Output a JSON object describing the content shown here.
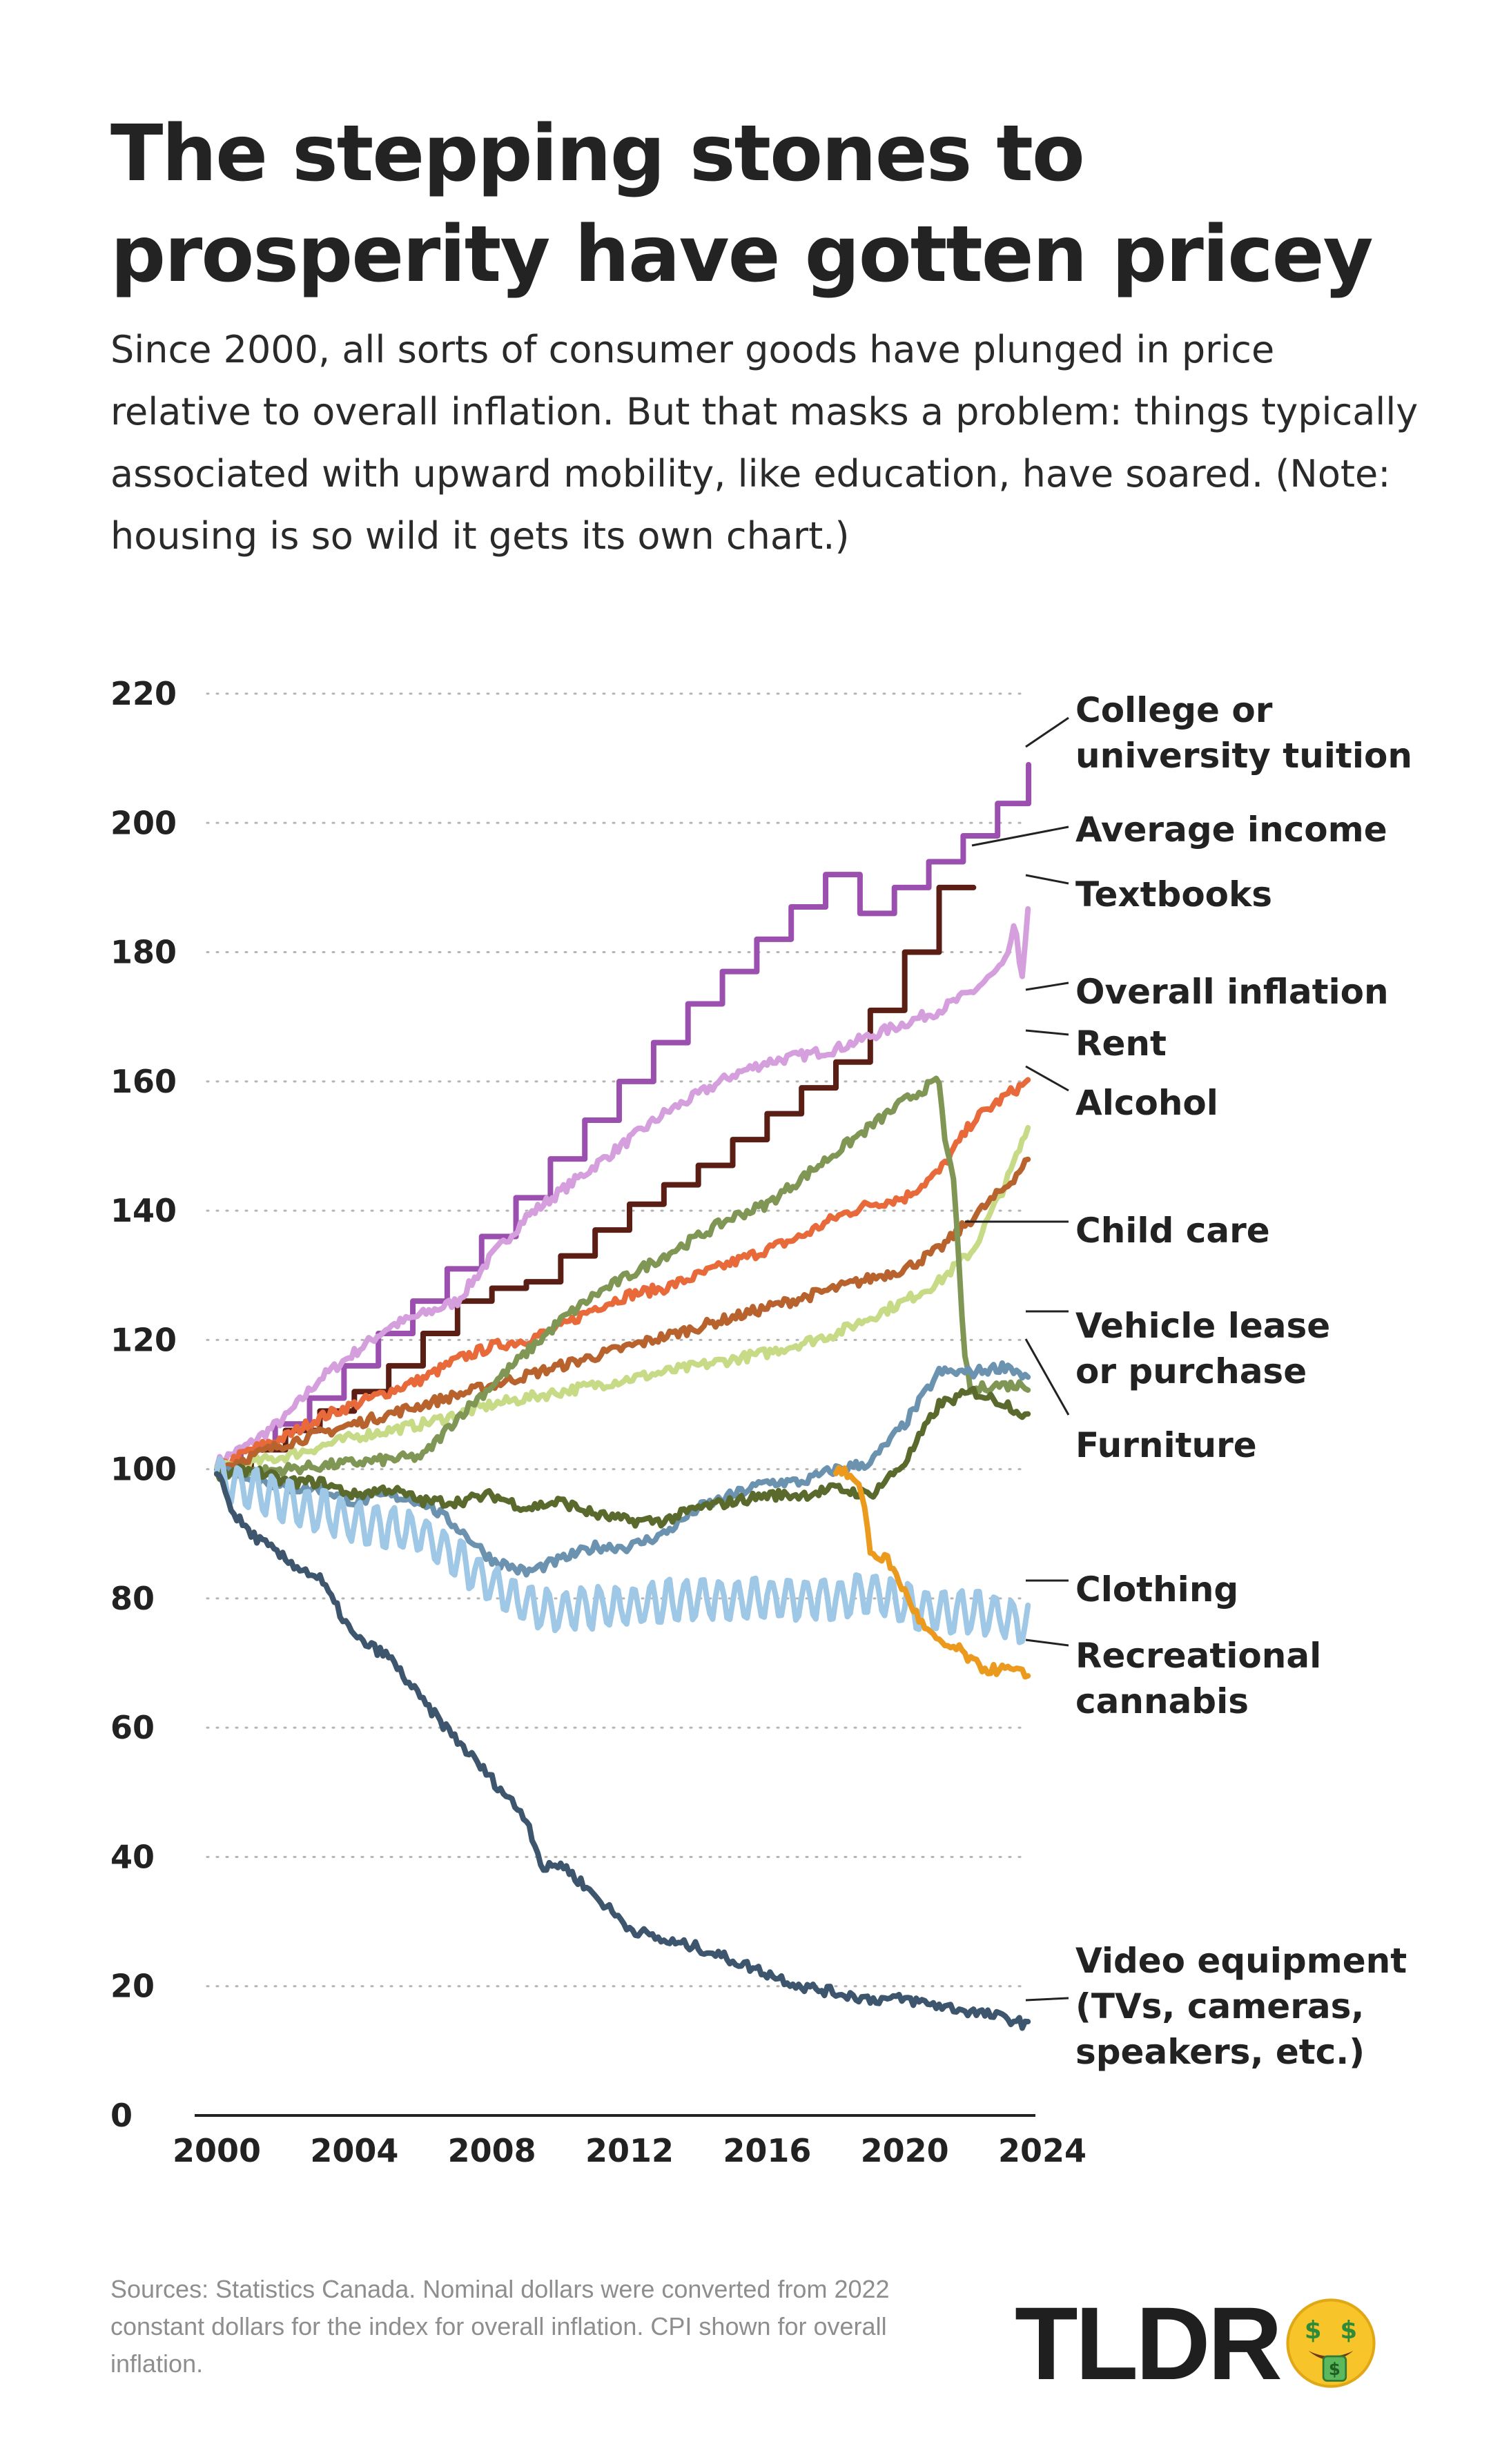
{
  "title": "The stepping stones to prosperity have gotten pricey",
  "subtitle": "Since 2000, all sorts of consumer goods have plunged in price relative to overall inflation. But that masks a problem: things typically associated with upward mobility, like education, have soared. (Note: housing is so wild it gets its own chart.)",
  "sources": "Sources: Statistics Canada. Nominal dollars were converted from 2022 constant dollars for the index for overall inflation. CPI shown for overall inflation.",
  "logo": {
    "text": "TLDR",
    "icon": "money-mouth-face-icon"
  },
  "chart_data": {
    "type": "line",
    "title": "",
    "xlabel": "",
    "ylabel": "",
    "xlim": [
      2000,
      2024
    ],
    "ylim": [
      0,
      220
    ],
    "x_ticks": [
      "2000",
      "2004",
      "2008",
      "2012",
      "2016",
      "2020",
      "2024"
    ],
    "y_ticks": [
      "0",
      "20",
      "40",
      "60",
      "80",
      "100",
      "120",
      "140",
      "160",
      "180",
      "200",
      "220"
    ],
    "grid": "horizontal dotted",
    "legend": "direct labels at right",
    "series": [
      {
        "name": "College or university tuition",
        "color": "#9b4fae",
        "style": "step",
        "points": [
          [
            2000,
            100
          ],
          [
            2000.7,
            103
          ],
          [
            2001.7,
            107
          ],
          [
            2002.7,
            111
          ],
          [
            2003.7,
            116
          ],
          [
            2004.7,
            121
          ],
          [
            2005.7,
            126
          ],
          [
            2006.7,
            131
          ],
          [
            2007.7,
            136
          ],
          [
            2008.7,
            142
          ],
          [
            2009.7,
            148
          ],
          [
            2010.7,
            154
          ],
          [
            2011.7,
            160
          ],
          [
            2012.7,
            166
          ],
          [
            2013.7,
            172
          ],
          [
            2014.7,
            177
          ],
          [
            2015.7,
            182
          ],
          [
            2016.7,
            187
          ],
          [
            2017.7,
            192
          ],
          [
            2018.7,
            186
          ],
          [
            2019.7,
            190
          ],
          [
            2020.7,
            194
          ],
          [
            2021.7,
            198
          ],
          [
            2022.7,
            203
          ],
          [
            2023.6,
            209
          ]
        ]
      },
      {
        "name": "Average income",
        "color": "#5a1e14",
        "style": "step",
        "points": [
          [
            2000,
            100
          ],
          [
            2001,
            103
          ],
          [
            2002,
            106
          ],
          [
            2003,
            109
          ],
          [
            2004,
            112
          ],
          [
            2005,
            116
          ],
          [
            2006,
            121
          ],
          [
            2007,
            126
          ],
          [
            2008,
            128
          ],
          [
            2009,
            129
          ],
          [
            2010,
            133
          ],
          [
            2011,
            137
          ],
          [
            2012,
            141
          ],
          [
            2013,
            144
          ],
          [
            2014,
            147
          ],
          [
            2015,
            151
          ],
          [
            2016,
            155
          ],
          [
            2017,
            159
          ],
          [
            2018,
            163
          ],
          [
            2019,
            171
          ],
          [
            2020,
            180
          ],
          [
            2021,
            190
          ],
          [
            2022,
            190
          ]
        ]
      },
      {
        "name": "Textbooks",
        "color": "#d59fdd",
        "points": [
          [
            2000,
            101
          ],
          [
            2001,
            104
          ],
          [
            2002,
            108
          ],
          [
            2003,
            114
          ],
          [
            2004,
            118
          ],
          [
            2005,
            122
          ],
          [
            2006,
            124
          ],
          [
            2007,
            126
          ],
          [
            2008,
            133
          ],
          [
            2009,
            139
          ],
          [
            2010,
            143
          ],
          [
            2011,
            147
          ],
          [
            2012,
            151
          ],
          [
            2013,
            155
          ],
          [
            2014,
            158
          ],
          [
            2015,
            161
          ],
          [
            2016,
            163
          ],
          [
            2017,
            164
          ],
          [
            2018,
            165
          ],
          [
            2019,
            167
          ],
          [
            2020,
            169
          ],
          [
            2021,
            171
          ],
          [
            2022,
            174
          ],
          [
            2022.9,
            178
          ],
          [
            2023.2,
            184
          ],
          [
            2023.4,
            176
          ],
          [
            2023.6,
            187
          ]
        ]
      },
      {
        "name": "Overall inflation",
        "color": "#e8693a",
        "points": [
          [
            2000,
            100
          ],
          [
            2001,
            103
          ],
          [
            2002,
            105
          ],
          [
            2003,
            108
          ],
          [
            2004,
            110
          ],
          [
            2005,
            112
          ],
          [
            2006,
            114
          ],
          [
            2007,
            117
          ],
          [
            2008,
            119
          ],
          [
            2009,
            120
          ],
          [
            2010,
            122
          ],
          [
            2011,
            125
          ],
          [
            2012,
            127
          ],
          [
            2013,
            128
          ],
          [
            2014,
            130
          ],
          [
            2015,
            132
          ],
          [
            2016,
            134
          ],
          [
            2017,
            136
          ],
          [
            2018,
            139
          ],
          [
            2019,
            141
          ],
          [
            2020,
            142
          ],
          [
            2021,
            146
          ],
          [
            2022,
            154
          ],
          [
            2023,
            158
          ],
          [
            2023.6,
            160
          ]
        ]
      },
      {
        "name": "Rent",
        "color": "#c7db86",
        "points": [
          [
            2000,
            100
          ],
          [
            2002,
            102
          ],
          [
            2004,
            105
          ],
          [
            2006,
            107
          ],
          [
            2008,
            110
          ],
          [
            2010,
            112
          ],
          [
            2012,
            114
          ],
          [
            2014,
            116
          ],
          [
            2016,
            118
          ],
          [
            2018,
            121
          ],
          [
            2020,
            126
          ],
          [
            2021,
            129
          ],
          [
            2022,
            134
          ],
          [
            2023,
            145
          ],
          [
            2023.6,
            153
          ]
        ]
      },
      {
        "name": "Alcohol",
        "color": "#b8622e",
        "points": [
          [
            2000,
            100
          ],
          [
            2002,
            104
          ],
          [
            2004,
            107
          ],
          [
            2006,
            110
          ],
          [
            2008,
            113
          ],
          [
            2010,
            116
          ],
          [
            2012,
            119
          ],
          [
            2014,
            122
          ],
          [
            2016,
            125
          ],
          [
            2018,
            128
          ],
          [
            2020,
            131
          ],
          [
            2021,
            134
          ],
          [
            2022,
            139
          ],
          [
            2023,
            144
          ],
          [
            2023.6,
            148
          ]
        ]
      },
      {
        "name": "Child care",
        "color": "#809655",
        "points": [
          [
            2000,
            99
          ],
          [
            2002,
            100
          ],
          [
            2004,
            101
          ],
          [
            2006,
            102
          ],
          [
            2007,
            108
          ],
          [
            2008,
            113
          ],
          [
            2009,
            118
          ],
          [
            2010,
            123
          ],
          [
            2011,
            127
          ],
          [
            2012,
            130
          ],
          [
            2013,
            133
          ],
          [
            2014,
            136
          ],
          [
            2015,
            139
          ],
          [
            2016,
            141
          ],
          [
            2017,
            145
          ],
          [
            2018,
            149
          ],
          [
            2019,
            153
          ],
          [
            2020,
            157
          ],
          [
            2020.6,
            159
          ],
          [
            2021,
            160
          ],
          [
            2021.2,
            149
          ],
          [
            2021.4,
            147
          ],
          [
            2021.7,
            120
          ],
          [
            2021.9,
            112
          ],
          [
            2022.5,
            113
          ],
          [
            2023.6,
            113
          ]
        ]
      },
      {
        "name": "Vehicle lease or purchase",
        "color": "#6b93b0",
        "points": [
          [
            2000,
            100
          ],
          [
            2001,
            99
          ],
          [
            2002,
            97
          ],
          [
            2003,
            97
          ],
          [
            2004,
            95
          ],
          [
            2005,
            96
          ],
          [
            2006,
            95
          ],
          [
            2007,
            91
          ],
          [
            2008,
            86
          ],
          [
            2009,
            84
          ],
          [
            2010,
            86
          ],
          [
            2011,
            88
          ],
          [
            2012,
            88
          ],
          [
            2013,
            90
          ],
          [
            2014,
            94
          ],
          [
            2015,
            96
          ],
          [
            2016,
            98
          ],
          [
            2017,
            98
          ],
          [
            2018,
            100
          ],
          [
            2019,
            101
          ],
          [
            2020,
            107
          ],
          [
            2021,
            115
          ],
          [
            2022,
            115
          ],
          [
            2023,
            116
          ],
          [
            2023.6,
            114
          ]
        ]
      },
      {
        "name": "Furniture",
        "color": "#5a6a2d",
        "points": [
          [
            2000,
            99
          ],
          [
            2001,
            100
          ],
          [
            2002,
            98
          ],
          [
            2003,
            98
          ],
          [
            2004,
            96
          ],
          [
            2005,
            97
          ],
          [
            2006,
            95
          ],
          [
            2007,
            95
          ],
          [
            2008,
            96
          ],
          [
            2009,
            94
          ],
          [
            2010,
            95
          ],
          [
            2011,
            93
          ],
          [
            2012,
            92
          ],
          [
            2013,
            92
          ],
          [
            2014,
            94
          ],
          [
            2015,
            95
          ],
          [
            2016,
            96
          ],
          [
            2017,
            96
          ],
          [
            2018,
            97
          ],
          [
            2019,
            96
          ],
          [
            2020,
            101
          ],
          [
            2021,
            110
          ],
          [
            2022,
            112
          ],
          [
            2023,
            110
          ],
          [
            2023.6,
            108
          ]
        ]
      },
      {
        "name": "Clothing",
        "color": "#9fc7e6",
        "style": "seasonal",
        "points": [
          [
            2000,
            99
          ],
          [
            2002,
            95
          ],
          [
            2004,
            92
          ],
          [
            2006,
            90
          ],
          [
            2007,
            86
          ],
          [
            2008,
            82
          ],
          [
            2009,
            79
          ],
          [
            2010,
            78
          ],
          [
            2012,
            79
          ],
          [
            2014,
            80
          ],
          [
            2016,
            80
          ],
          [
            2018,
            80
          ],
          [
            2019,
            81
          ],
          [
            2020,
            79
          ],
          [
            2021,
            78
          ],
          [
            2022,
            78
          ],
          [
            2023,
            77
          ],
          [
            2023.6,
            76
          ]
        ]
      },
      {
        "name": "Recreational cannabis",
        "color": "#eb9a1e",
        "points": [
          [
            2018,
            100
          ],
          [
            2018.4,
            99
          ],
          [
            2018.8,
            96
          ],
          [
            2019.0,
            87
          ],
          [
            2019.5,
            86
          ],
          [
            2020,
            81
          ],
          [
            2020.5,
            76
          ],
          [
            2021,
            73
          ],
          [
            2021.6,
            72
          ],
          [
            2022,
            70
          ],
          [
            2022.4,
            69
          ],
          [
            2023,
            69
          ],
          [
            2023.6,
            68
          ]
        ]
      },
      {
        "name": "Video equipment (TVs, cameras, speakers, etc.)",
        "color": "#3d566e",
        "points": [
          [
            2000,
            100
          ],
          [
            2000.5,
            93
          ],
          [
            2001,
            90
          ],
          [
            2002,
            86
          ],
          [
            2003,
            83
          ],
          [
            2004,
            74
          ],
          [
            2005,
            71
          ],
          [
            2006,
            64
          ],
          [
            2007,
            58
          ],
          [
            2008,
            52
          ],
          [
            2009,
            46
          ],
          [
            2009.5,
            38
          ],
          [
            2010,
            39
          ],
          [
            2011,
            34
          ],
          [
            2012,
            29
          ],
          [
            2013,
            27
          ],
          [
            2014,
            26
          ],
          [
            2015,
            24
          ],
          [
            2016,
            22
          ],
          [
            2017,
            20
          ],
          [
            2018,
            19
          ],
          [
            2019,
            18
          ],
          [
            2020,
            18
          ],
          [
            2021,
            17
          ],
          [
            2022,
            16
          ],
          [
            2023,
            15
          ],
          [
            2023.6,
            14
          ]
        ]
      }
    ]
  },
  "labels": [
    {
      "text": [
        "College or",
        "university tuition"
      ]
    },
    {
      "text": [
        "Average income"
      ]
    },
    {
      "text": [
        "Textbooks"
      ]
    },
    {
      "text": [
        "Overall inflation"
      ]
    },
    {
      "text": [
        "Rent"
      ]
    },
    {
      "text": [
        "Alcohol"
      ]
    },
    {
      "text": [
        "Child care"
      ]
    },
    {
      "text": [
        "Vehicle lease",
        "or purchase"
      ]
    },
    {
      "text": [
        "Furniture"
      ]
    },
    {
      "text": [
        "Clothing"
      ]
    },
    {
      "text": [
        "Recreational",
        "cannabis"
      ]
    },
    {
      "text": [
        "Video equipment",
        "(TVs, cameras,",
        "speakers, etc.)"
      ]
    }
  ]
}
